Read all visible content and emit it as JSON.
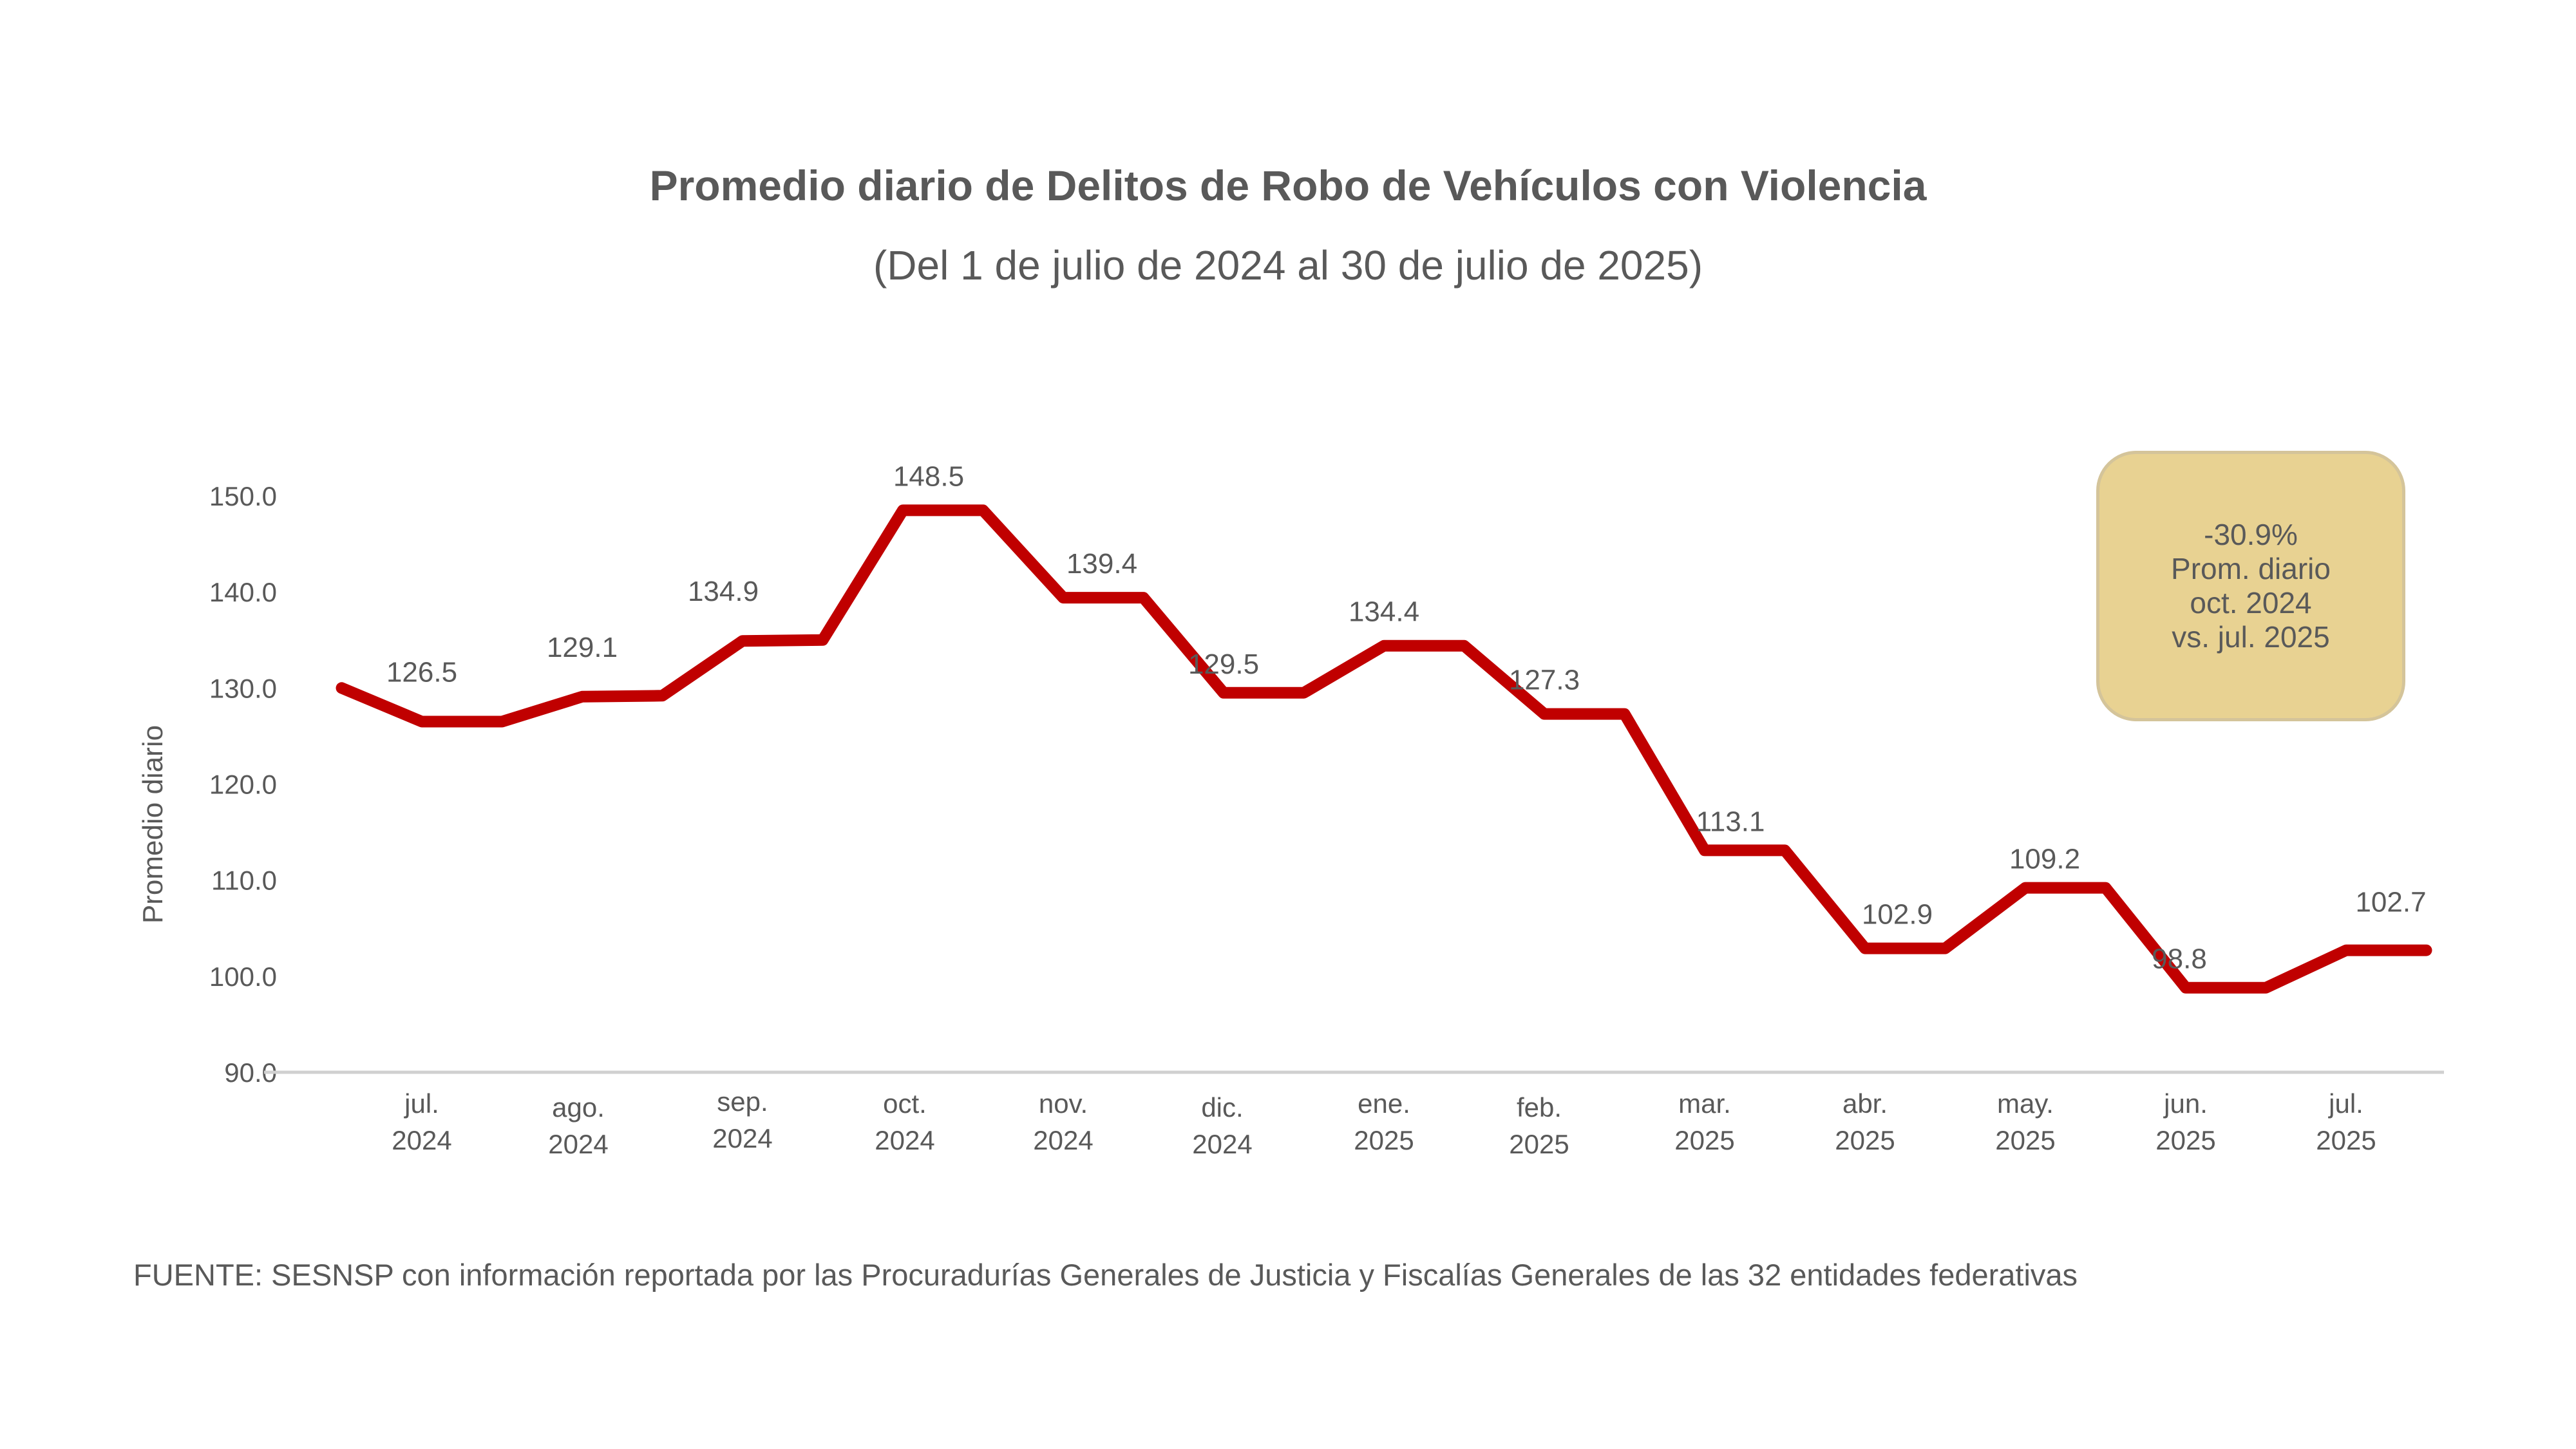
{
  "chart_data": {
    "type": "line",
    "title": "Promedio diario de Delitos de Robo de Vehículos con Violencia",
    "subtitle": "(Del 1 de julio de 2024 al 30 de julio de 2025)",
    "ylabel": "Promedio diario",
    "xlabel": "",
    "ylim": [
      90,
      150
    ],
    "yticks": [
      "150.0",
      "140.0",
      "130.0",
      "120.0",
      "110.0",
      "100.0",
      "90.0"
    ],
    "grid": false,
    "categories": [
      [
        "jul.",
        "2024"
      ],
      [
        "ago.",
        "2024"
      ],
      [
        "sep.",
        "2024"
      ],
      [
        "oct.",
        "2024"
      ],
      [
        "nov.",
        "2024"
      ],
      [
        "dic.",
        "2024"
      ],
      [
        "ene.",
        "2025"
      ],
      [
        "feb.",
        "2025"
      ],
      [
        "mar.",
        "2025"
      ],
      [
        "abr.",
        "2025"
      ],
      [
        "may.",
        "2025"
      ],
      [
        "jun.",
        "2025"
      ],
      [
        "jul.",
        "2025"
      ]
    ],
    "line_points": [
      [
        -0.5,
        130.0
      ],
      [
        0,
        126.5
      ],
      [
        0.5,
        126.5
      ],
      [
        1,
        129.1
      ],
      [
        1.5,
        129.2
      ],
      [
        2,
        134.9
      ],
      [
        2.5,
        135.0
      ],
      [
        3,
        148.5
      ],
      [
        3.5,
        148.5
      ],
      [
        4,
        139.4
      ],
      [
        4.5,
        139.4
      ],
      [
        5,
        129.5
      ],
      [
        5.5,
        129.5
      ],
      [
        6,
        134.4
      ],
      [
        6.5,
        134.4
      ],
      [
        7,
        127.3
      ],
      [
        7.5,
        127.3
      ],
      [
        8,
        113.1
      ],
      [
        8.5,
        113.1
      ],
      [
        9,
        102.9
      ],
      [
        9.5,
        102.9
      ],
      [
        10,
        109.2
      ],
      [
        10.5,
        109.2
      ],
      [
        11,
        98.8
      ],
      [
        11.5,
        98.8
      ],
      [
        12,
        102.7
      ],
      [
        12.5,
        102.7
      ]
    ],
    "data_labels": [
      {
        "x": 0,
        "value": 126.5,
        "text": "126.5"
      },
      {
        "x": 1,
        "value": 129.1,
        "text": "129.1"
      },
      {
        "x": 2,
        "value": 134.9,
        "text": "134.9"
      },
      {
        "x": 3,
        "value": 148.5,
        "text": "148.5"
      },
      {
        "x": 4,
        "value": 139.4,
        "text": "139.4"
      },
      {
        "x": 5,
        "value": 129.5,
        "text": "129.5"
      },
      {
        "x": 6,
        "value": 134.4,
        "text": "134.4"
      },
      {
        "x": 7,
        "value": 127.3,
        "text": "127.3"
      },
      {
        "x": 8,
        "value": 113.1,
        "text": "113.1"
      },
      {
        "x": 9,
        "value": 102.9,
        "text": "102.9"
      },
      {
        "x": 10,
        "value": 109.2,
        "text": "109.2"
      },
      {
        "x": 11,
        "value": 98.8,
        "text": "98.8"
      },
      {
        "x": 12.5,
        "value": 102.7,
        "text": "102.7"
      }
    ],
    "line_color": "#c00000"
  },
  "annotation": {
    "lines": [
      "-30.9%",
      "Prom. diario",
      "oct. 2024",
      "vs. jul. 2025"
    ],
    "background": "#e8d292"
  },
  "source": "FUENTE: SESNSP con información reportada por las Procuradurías Generales de Justicia y Fiscalías Generales de las 32 entidades federativas"
}
